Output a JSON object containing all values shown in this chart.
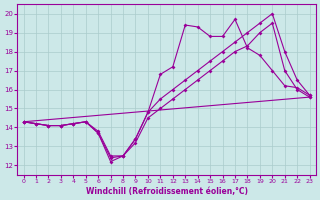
{
  "xlabel": "Windchill (Refroidissement éolien,°C)",
  "ylabel": "",
  "xlim": [
    -0.5,
    23.5
  ],
  "ylim": [
    11.5,
    20.5
  ],
  "xticks": [
    0,
    1,
    2,
    3,
    4,
    5,
    6,
    7,
    8,
    9,
    10,
    11,
    12,
    13,
    14,
    15,
    16,
    17,
    18,
    19,
    20,
    21,
    22,
    23
  ],
  "yticks": [
    12,
    13,
    14,
    15,
    16,
    17,
    18,
    19,
    20
  ],
  "bg_color": "#cce8e8",
  "line_color": "#990099",
  "grid_color": "#aacccc",
  "curves": [
    {
      "x": [
        0,
        1,
        2,
        3,
        4,
        5,
        6,
        7,
        8,
        9,
        10,
        11,
        12,
        13,
        14,
        15,
        16,
        17,
        18,
        19,
        20,
        21,
        22,
        23
      ],
      "y": [
        14.3,
        14.2,
        14.1,
        14.1,
        14.2,
        14.3,
        13.7,
        12.2,
        12.5,
        13.4,
        14.8,
        16.8,
        17.2,
        19.4,
        19.3,
        18.8,
        18.8,
        19.7,
        18.2,
        17.8,
        17.0,
        16.2,
        16.1,
        15.7
      ]
    },
    {
      "x": [
        0,
        1,
        2,
        3,
        4,
        5,
        6,
        7,
        8,
        9,
        10,
        11,
        12,
        13,
        14,
        15,
        16,
        17,
        18,
        19,
        20,
        21,
        22,
        23
      ],
      "y": [
        14.3,
        14.2,
        14.1,
        14.1,
        14.2,
        14.3,
        13.8,
        12.5,
        12.5,
        13.4,
        14.8,
        15.5,
        16.0,
        16.5,
        17.0,
        17.5,
        18.0,
        18.5,
        19.0,
        19.5,
        20.0,
        18.0,
        16.5,
        15.7
      ]
    },
    {
      "x": [
        0,
        1,
        2,
        3,
        4,
        5,
        6,
        7,
        8,
        9,
        10,
        11,
        12,
        13,
        14,
        15,
        16,
        17,
        18,
        19,
        20,
        21,
        22,
        23
      ],
      "y": [
        14.3,
        14.2,
        14.1,
        14.1,
        14.2,
        14.3,
        13.7,
        12.4,
        12.5,
        13.2,
        14.5,
        15.0,
        15.5,
        16.0,
        16.5,
        17.0,
        17.5,
        18.0,
        18.3,
        19.0,
        19.5,
        17.0,
        16.0,
        15.6
      ]
    },
    {
      "x": [
        0,
        23
      ],
      "y": [
        14.3,
        15.6
      ]
    }
  ]
}
